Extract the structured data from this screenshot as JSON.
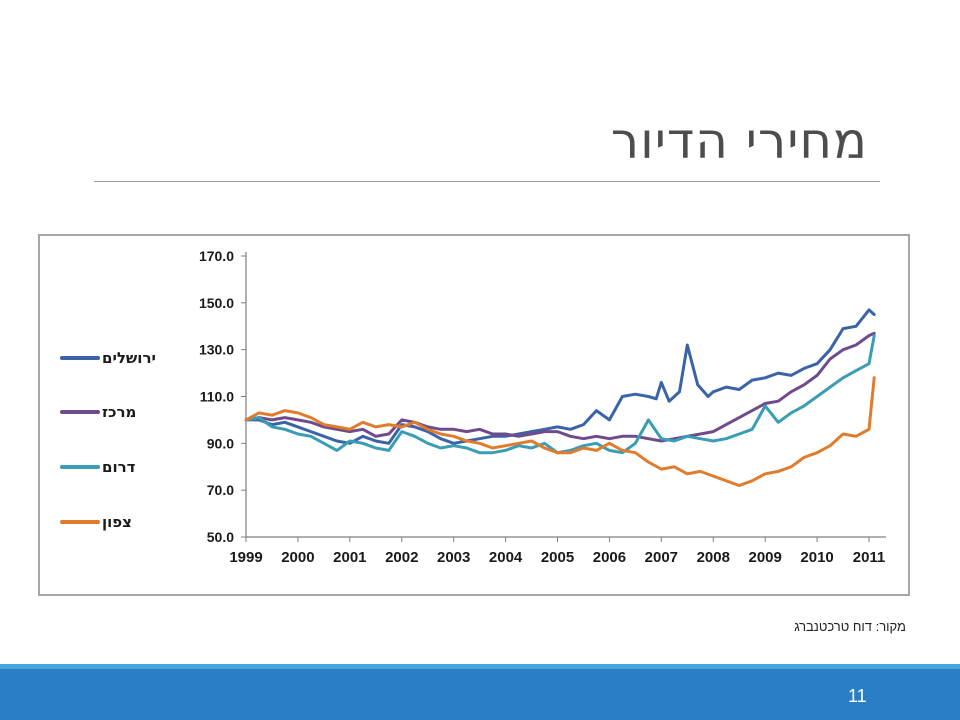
{
  "slide": {
    "title": "מחירי הדיור",
    "source": "מקור: דוח טרכטנברג",
    "page_number": "11"
  },
  "chart_data": {
    "type": "line",
    "title": "",
    "xlabel": "",
    "ylabel": "",
    "ylim": [
      50,
      170
    ],
    "xlim": [
      1999,
      2011.25
    ],
    "yticks": [
      "170.0",
      "150.0",
      "130.0",
      "110.0",
      "90.0",
      "70.0",
      "50.0"
    ],
    "xticks": [
      "1999",
      "2000",
      "2001",
      "2002",
      "2003",
      "2004",
      "2005",
      "2006",
      "2007",
      "2008",
      "2009",
      "2010",
      "2011"
    ],
    "grid": false,
    "legend_position": "left",
    "series": [
      {
        "name": "ירושלים",
        "color": "#3a63a8",
        "x": [
          1999.0,
          1999.25,
          1999.5,
          1999.75,
          2000.0,
          2000.25,
          2000.5,
          2000.75,
          2001.0,
          2001.25,
          2001.5,
          2001.75,
          2002.0,
          2002.25,
          2002.5,
          2002.75,
          2003.0,
          2003.25,
          2003.5,
          2003.75,
          2004.0,
          2004.25,
          2004.5,
          2004.75,
          2005.0,
          2005.25,
          2005.5,
          2005.75,
          2006.0,
          2006.25,
          2006.5,
          2006.75,
          2006.9,
          2007.0,
          2007.15,
          2007.35,
          2007.5,
          2007.7,
          2007.9,
          2008.0,
          2008.25,
          2008.5,
          2008.75,
          2009.0,
          2009.25,
          2009.5,
          2009.75,
          2010.0,
          2010.25,
          2010.5,
          2010.75,
          2011.0,
          2011.1
        ],
        "values": [
          100,
          100,
          98,
          99,
          97,
          95,
          93,
          91,
          90,
          93,
          91,
          90,
          98,
          97,
          95,
          92,
          90,
          91,
          92,
          93,
          93,
          94,
          95,
          96,
          97,
          96,
          98,
          104,
          100,
          110,
          111,
          110,
          109,
          116,
          108,
          112,
          132,
          115,
          110,
          112,
          114,
          113,
          117,
          118,
          120,
          119,
          122,
          124,
          130,
          139,
          140,
          147,
          145
        ]
      },
      {
        "name": "מרכז",
        "color": "#704b8c",
        "x": [
          1999.0,
          1999.25,
          1999.5,
          1999.75,
          2000.0,
          2000.25,
          2000.5,
          2000.75,
          2001.0,
          2001.25,
          2001.5,
          2001.75,
          2002.0,
          2002.25,
          2002.5,
          2002.75,
          2003.0,
          2003.25,
          2003.5,
          2003.75,
          2004.0,
          2004.25,
          2004.5,
          2004.75,
          2005.0,
          2005.25,
          2005.5,
          2005.75,
          2006.0,
          2006.25,
          2006.5,
          2006.75,
          2007.0,
          2007.25,
          2007.5,
          2007.75,
          2008.0,
          2008.25,
          2008.5,
          2008.75,
          2009.0,
          2009.25,
          2009.5,
          2009.75,
          2010.0,
          2010.25,
          2010.5,
          2010.75,
          2011.0,
          2011.1
        ],
        "values": [
          100,
          101,
          100,
          101,
          100,
          99,
          97,
          96,
          95,
          96,
          93,
          94,
          100,
          99,
          97,
          96,
          96,
          95,
          96,
          94,
          94,
          93,
          94,
          95,
          95,
          93,
          92,
          93,
          92,
          93,
          93,
          92,
          91,
          92,
          93,
          94,
          95,
          98,
          101,
          104,
          107,
          108,
          112,
          115,
          119,
          126,
          130,
          132,
          136,
          137
        ]
      },
      {
        "name": "דרום",
        "color": "#3a9db5",
        "x": [
          1999.0,
          1999.25,
          1999.5,
          1999.75,
          2000.0,
          2000.25,
          2000.5,
          2000.75,
          2001.0,
          2001.25,
          2001.5,
          2001.75,
          2002.0,
          2002.25,
          2002.5,
          2002.75,
          2003.0,
          2003.25,
          2003.5,
          2003.75,
          2004.0,
          2004.25,
          2004.5,
          2004.75,
          2005.0,
          2005.25,
          2005.5,
          2005.75,
          2006.0,
          2006.25,
          2006.5,
          2006.75,
          2007.0,
          2007.25,
          2007.5,
          2007.75,
          2008.0,
          2008.25,
          2008.5,
          2008.75,
          2009.0,
          2009.25,
          2009.5,
          2009.75,
          2010.0,
          2010.25,
          2010.5,
          2010.75,
          2011.0,
          2011.1
        ],
        "values": [
          100,
          101,
          97,
          96,
          94,
          93,
          90,
          87,
          91,
          90,
          88,
          87,
          95,
          93,
          90,
          88,
          89,
          88,
          86,
          86,
          87,
          89,
          88,
          90,
          86,
          87,
          89,
          90,
          87,
          86,
          90,
          100,
          92,
          91,
          93,
          92,
          91,
          92,
          94,
          96,
          106,
          99,
          103,
          106,
          110,
          114,
          118,
          121,
          124,
          136
        ]
      },
      {
        "name": "צפון",
        "color": "#e07c2e",
        "x": [
          1999.0,
          1999.25,
          1999.5,
          1999.75,
          2000.0,
          2000.25,
          2000.5,
          2000.75,
          2001.0,
          2001.25,
          2001.5,
          2001.75,
          2002.0,
          2002.25,
          2002.5,
          2002.75,
          2003.0,
          2003.25,
          2003.5,
          2003.75,
          2004.0,
          2004.25,
          2004.5,
          2004.75,
          2005.0,
          2005.25,
          2005.5,
          2005.75,
          2006.0,
          2006.25,
          2006.5,
          2006.75,
          2007.0,
          2007.25,
          2007.5,
          2007.75,
          2008.0,
          2008.25,
          2008.5,
          2008.75,
          2009.0,
          2009.25,
          2009.5,
          2009.75,
          2010.0,
          2010.25,
          2010.5,
          2010.75,
          2011.0,
          2011.1
        ],
        "values": [
          100,
          103,
          102,
          104,
          103,
          101,
          98,
          97,
          96,
          99,
          97,
          98,
          97,
          99,
          96,
          94,
          93,
          91,
          90,
          88,
          89,
          90,
          91,
          88,
          86,
          86,
          88,
          87,
          90,
          87,
          86,
          82,
          79,
          80,
          77,
          78,
          76,
          74,
          72,
          74,
          77,
          78,
          80,
          84,
          86,
          89,
          94,
          93,
          96,
          118
        ]
      }
    ]
  }
}
